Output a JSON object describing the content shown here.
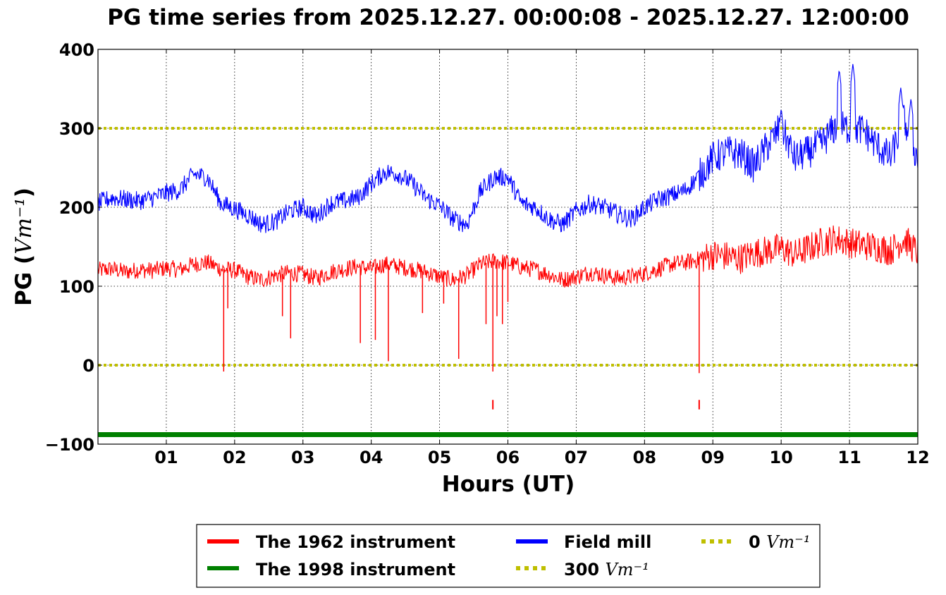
{
  "chart_data": {
    "type": "line",
    "title": "PG time series from 2025.12.27. 00:00:08 - 2025.12.27. 12:00:00",
    "xlabel": "Hours (UT)",
    "ylabel_prefix": "PG (",
    "ylabel_unit": "Vm⁻¹",
    "ylabel_suffix": ")",
    "xlim": [
      0,
      12
    ],
    "ylim": [
      -100,
      400
    ],
    "xticks": [
      1,
      2,
      3,
      4,
      5,
      6,
      7,
      8,
      9,
      10,
      11,
      12
    ],
    "xtick_labels": [
      "01",
      "02",
      "03",
      "04",
      "05",
      "06",
      "07",
      "08",
      "09",
      "10",
      "11",
      "12"
    ],
    "yticks": [
      -100,
      0,
      100,
      200,
      300,
      400
    ],
    "ytick_labels": [
      "−100",
      "0",
      "100",
      "200",
      "300",
      "400"
    ],
    "grid": true,
    "legend_position": "bottom-center",
    "legend_columns": 3,
    "series": [
      {
        "name": "The 1962 instrument",
        "color": "#ff0000",
        "x": [
          0,
          0.2,
          0.4,
          0.6,
          0.8,
          1.0,
          1.2,
          1.4,
          1.6,
          1.8,
          2.0,
          2.2,
          2.4,
          2.6,
          2.8,
          3.0,
          3.2,
          3.4,
          3.6,
          3.8,
          4.0,
          4.2,
          4.4,
          4.6,
          4.8,
          5.0,
          5.2,
          5.4,
          5.6,
          5.8,
          6.0,
          6.2,
          6.4,
          6.6,
          6.8,
          7.0,
          7.2,
          7.4,
          7.6,
          7.8,
          8.0,
          8.2,
          8.4,
          8.6,
          8.8,
          9.0,
          9.2,
          9.4,
          9.6,
          9.8,
          10.0,
          10.2,
          10.4,
          10.6,
          10.8,
          11.0,
          11.2,
          11.4,
          11.6,
          11.8,
          12.0
        ],
        "y": [
          120,
          122,
          118,
          121,
          120,
          123,
          121,
          128,
          130,
          122,
          120,
          112,
          108,
          114,
          117,
          115,
          110,
          118,
          122,
          125,
          122,
          128,
          125,
          122,
          118,
          112,
          108,
          114,
          128,
          132,
          130,
          124,
          121,
          115,
          108,
          112,
          118,
          114,
          110,
          112,
          116,
          122,
          128,
          130,
          134,
          140,
          138,
          135,
          142,
          145,
          148,
          140,
          148,
          156,
          160,
          155,
          152,
          150,
          145,
          160,
          142
        ],
        "spikes": [
          {
            "x": 1.84,
            "y": -8
          },
          {
            "x": 1.9,
            "y": 72
          },
          {
            "x": 2.7,
            "y": 62
          },
          {
            "x": 2.82,
            "y": 34
          },
          {
            "x": 3.84,
            "y": 28
          },
          {
            "x": 4.06,
            "y": 32
          },
          {
            "x": 4.25,
            "y": 5
          },
          {
            "x": 4.75,
            "y": 66
          },
          {
            "x": 5.06,
            "y": 78
          },
          {
            "x": 5.28,
            "y": 8
          },
          {
            "x": 5.68,
            "y": 52
          },
          {
            "x": 5.78,
            "y": -8
          },
          {
            "x": 5.84,
            "y": 62
          },
          {
            "x": 5.92,
            "y": 52
          },
          {
            "x": 6.0,
            "y": 80
          },
          {
            "x": 8.8,
            "y": -10
          }
        ],
        "points_isolated": [
          {
            "x": 5.78,
            "y": -50
          },
          {
            "x": 8.8,
            "y": -50
          }
        ]
      },
      {
        "name": "The 1998 instrument",
        "color": "#008000",
        "x": [
          0,
          12
        ],
        "y": [
          -88,
          -88
        ]
      },
      {
        "name": "Field mill",
        "color": "#0000ff",
        "x": [
          0,
          0.2,
          0.4,
          0.6,
          0.8,
          1.0,
          1.2,
          1.4,
          1.6,
          1.8,
          2.0,
          2.2,
          2.4,
          2.6,
          2.8,
          3.0,
          3.2,
          3.4,
          3.6,
          3.8,
          4.0,
          4.2,
          4.4,
          4.6,
          4.8,
          5.0,
          5.2,
          5.4,
          5.6,
          5.8,
          6.0,
          6.2,
          6.4,
          6.6,
          6.8,
          7.0,
          7.2,
          7.4,
          7.6,
          7.8,
          8.0,
          8.2,
          8.4,
          8.6,
          8.8,
          9.0,
          9.2,
          9.4,
          9.6,
          9.8,
          10.0,
          10.2,
          10.4,
          10.6,
          10.8,
          11.0,
          11.2,
          11.4,
          11.6,
          11.8,
          12.0
        ],
        "y": [
          205,
          212,
          210,
          208,
          212,
          218,
          222,
          242,
          238,
          205,
          198,
          190,
          178,
          182,
          195,
          200,
          188,
          205,
          208,
          212,
          230,
          245,
          242,
          230,
          212,
          202,
          185,
          178,
          220,
          238,
          238,
          205,
          200,
          185,
          178,
          195,
          205,
          200,
          192,
          185,
          200,
          210,
          215,
          222,
          240,
          262,
          270,
          268,
          252,
          278,
          302,
          262,
          270,
          282,
          302,
          300,
          298,
          278,
          262,
          310,
          260
        ],
        "peaks": [
          {
            "x": 10.0,
            "y": 325
          },
          {
            "x": 10.85,
            "y": 375
          },
          {
            "x": 11.05,
            "y": 382
          },
          {
            "x": 11.75,
            "y": 352
          },
          {
            "x": 11.9,
            "y": 338
          }
        ]
      },
      {
        "name": "300 Vm⁻¹",
        "name_prefix": "300 ",
        "name_unit": "Vm⁻¹",
        "color": "#bfbf00",
        "style": "dotted",
        "x": [
          0,
          12
        ],
        "y": [
          300,
          300
        ]
      },
      {
        "name": "0 Vm⁻¹",
        "name_prefix": "0 ",
        "name_unit": "Vm⁻¹",
        "color": "#bfbf00",
        "style": "dotted",
        "x": [
          0,
          12
        ],
        "y": [
          0,
          0
        ]
      }
    ]
  }
}
